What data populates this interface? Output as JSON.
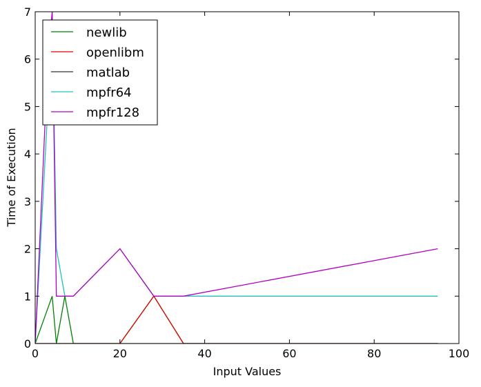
{
  "chart_data": {
    "type": "line",
    "xlabel": "Input Values",
    "ylabel": "Time of Execution",
    "xlim": [
      0,
      100
    ],
    "ylim": [
      0,
      7
    ],
    "xticks": [
      0,
      20,
      40,
      60,
      80,
      100
    ],
    "yticks": [
      0,
      1,
      2,
      3,
      4,
      5,
      6,
      7
    ],
    "grid": false,
    "legend_position": "top-left",
    "series": [
      {
        "name": "newlib",
        "color": "#008000",
        "points": [
          [
            0,
            0
          ],
          [
            4,
            1
          ],
          [
            5,
            0
          ],
          [
            7,
            1
          ],
          [
            9,
            0
          ],
          [
            20,
            0
          ],
          [
            28,
            1
          ],
          [
            35,
            0
          ],
          [
            95,
            0
          ]
        ]
      },
      {
        "name": "openlibm",
        "color": "#e00000",
        "points": [
          [
            0,
            0
          ],
          [
            5,
            0
          ],
          [
            20,
            0
          ],
          [
            28,
            1
          ],
          [
            35,
            0
          ],
          [
            95,
            0
          ]
        ]
      },
      {
        "name": "matlab",
        "color": "#333333",
        "points": [
          [
            0,
            0
          ],
          [
            95,
            0
          ]
        ]
      },
      {
        "name": "mpfr64",
        "color": "#20c0c0",
        "points": [
          [
            0,
            0
          ],
          [
            3,
            5
          ],
          [
            4,
            7
          ],
          [
            5,
            2
          ],
          [
            7,
            1
          ],
          [
            9,
            1
          ],
          [
            20,
            2
          ],
          [
            28,
            1
          ],
          [
            35,
            1
          ],
          [
            95,
            1
          ]
        ]
      },
      {
        "name": "mpfr128",
        "color": "#b000c0",
        "points": [
          [
            0,
            0
          ],
          [
            3,
            6
          ],
          [
            4,
            7
          ],
          [
            5,
            1
          ],
          [
            9,
            1
          ],
          [
            20,
            2
          ],
          [
            28,
            1
          ],
          [
            35,
            1
          ],
          [
            95,
            2
          ]
        ]
      }
    ]
  }
}
